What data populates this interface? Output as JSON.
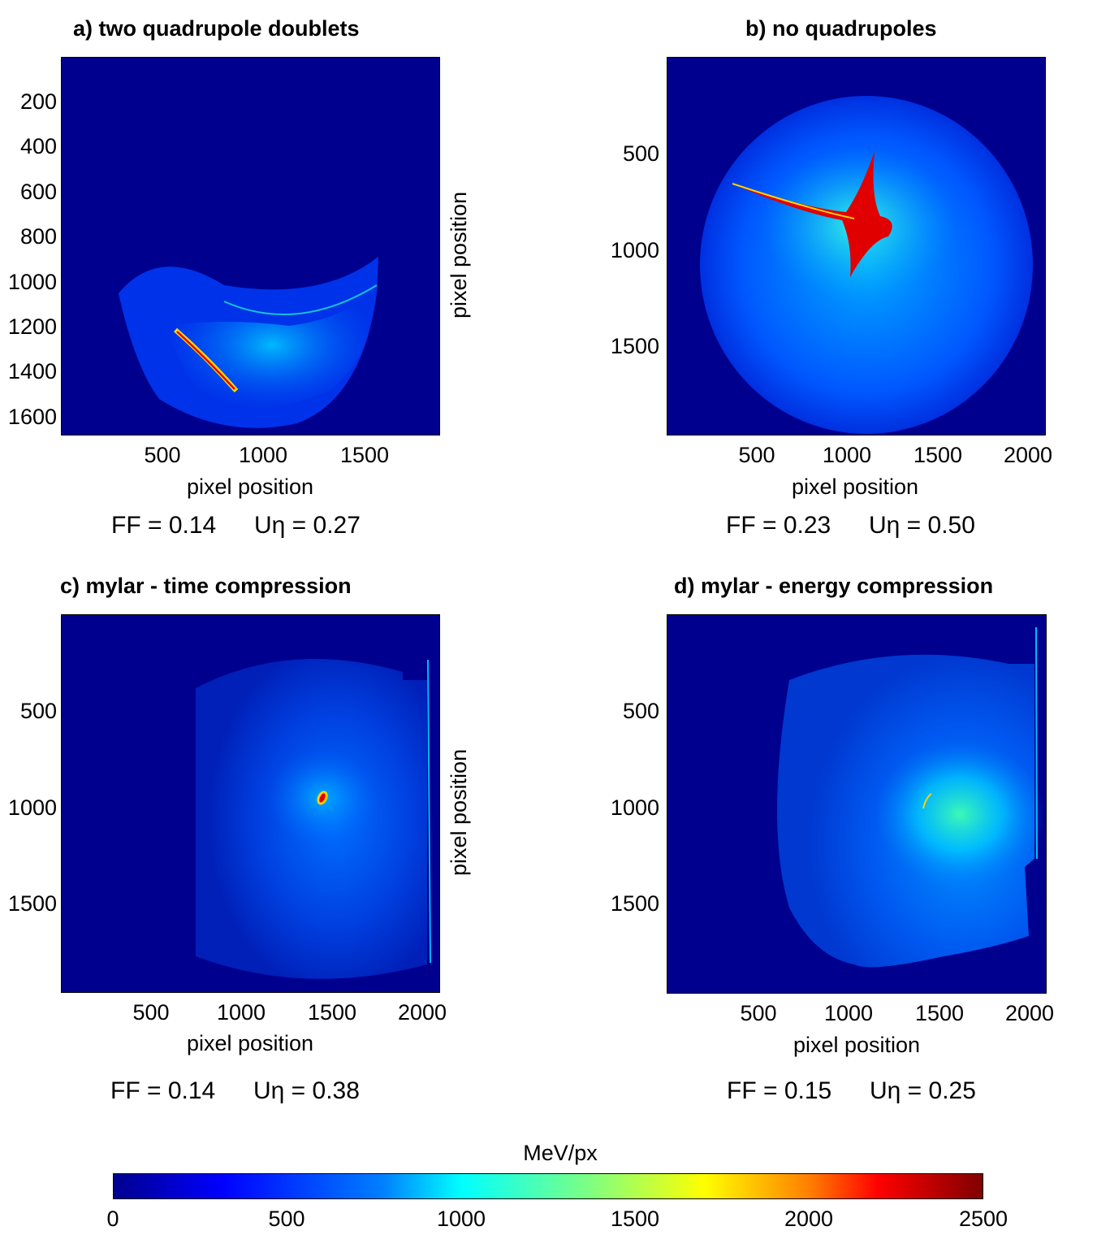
{
  "chart_data": [
    {
      "type": "heatmap",
      "panel": "a",
      "title": "a) two quadrupole doublets",
      "xlabel": "pixel position",
      "ylabel": "pixel position",
      "xticks": [
        "500",
        "1000",
        "1500"
      ],
      "yticks": [
        "200",
        "400",
        "600",
        "800",
        "1000",
        "1200",
        "1400",
        "1600"
      ],
      "xlim": [
        0,
        1900
      ],
      "ylim": [
        0,
        1700
      ],
      "ff_text": "FF = 0.14",
      "ueta_text": "Uη = 0.27",
      "ff": 0.14,
      "ueta": 0.27
    },
    {
      "type": "heatmap",
      "panel": "b",
      "title": "b) no quadrupoles",
      "xlabel": "pixel position",
      "ylabel": "",
      "xticks": [
        "500",
        "1000",
        "1500",
        "2000"
      ],
      "yticks": [
        "500",
        "1000",
        "1500"
      ],
      "xlim": [
        0,
        2100
      ],
      "ylim": [
        0,
        1960
      ],
      "ff_text": "FF = 0.23",
      "ueta_text": "Uη = 0.50",
      "ff": 0.23,
      "ueta": 0.5
    },
    {
      "type": "heatmap",
      "panel": "c",
      "title": "c) mylar -  time compression",
      "xlabel": "pixel position",
      "ylabel": "pixel position",
      "xticks": [
        "500",
        "1000",
        "1500",
        "2000"
      ],
      "yticks": [
        "500",
        "1000",
        "1500"
      ],
      "xlim": [
        0,
        2100
      ],
      "ylim": [
        0,
        1960
      ],
      "ff_text": "FF = 0.14",
      "ueta_text": "Uη = 0.38",
      "ff": 0.14,
      "ueta": 0.38
    },
    {
      "type": "heatmap",
      "panel": "d",
      "title": "d) mylar - energy compression",
      "xlabel": "pixel position",
      "ylabel": "",
      "xticks": [
        "500",
        "1000",
        "1500",
        "2000"
      ],
      "yticks": [
        "500",
        "1000",
        "1500"
      ],
      "xlim": [
        0,
        2100
      ],
      "ylim": [
        0,
        1960
      ],
      "ff_text": "FF = 0.15",
      "ueta_text": "Uη = 0.25",
      "ff": 0.15,
      "ueta": 0.25
    }
  ],
  "colorbar": {
    "label": "MeV/px",
    "ticks": [
      "0",
      "500",
      "1000",
      "1500",
      "2000",
      "2500"
    ],
    "range": [
      0,
      2500
    ],
    "colormap": "jet"
  },
  "colors": {
    "background_low": "#00008f",
    "mid": "#00ffff",
    "high": "#ff0000",
    "max": "#800000"
  }
}
